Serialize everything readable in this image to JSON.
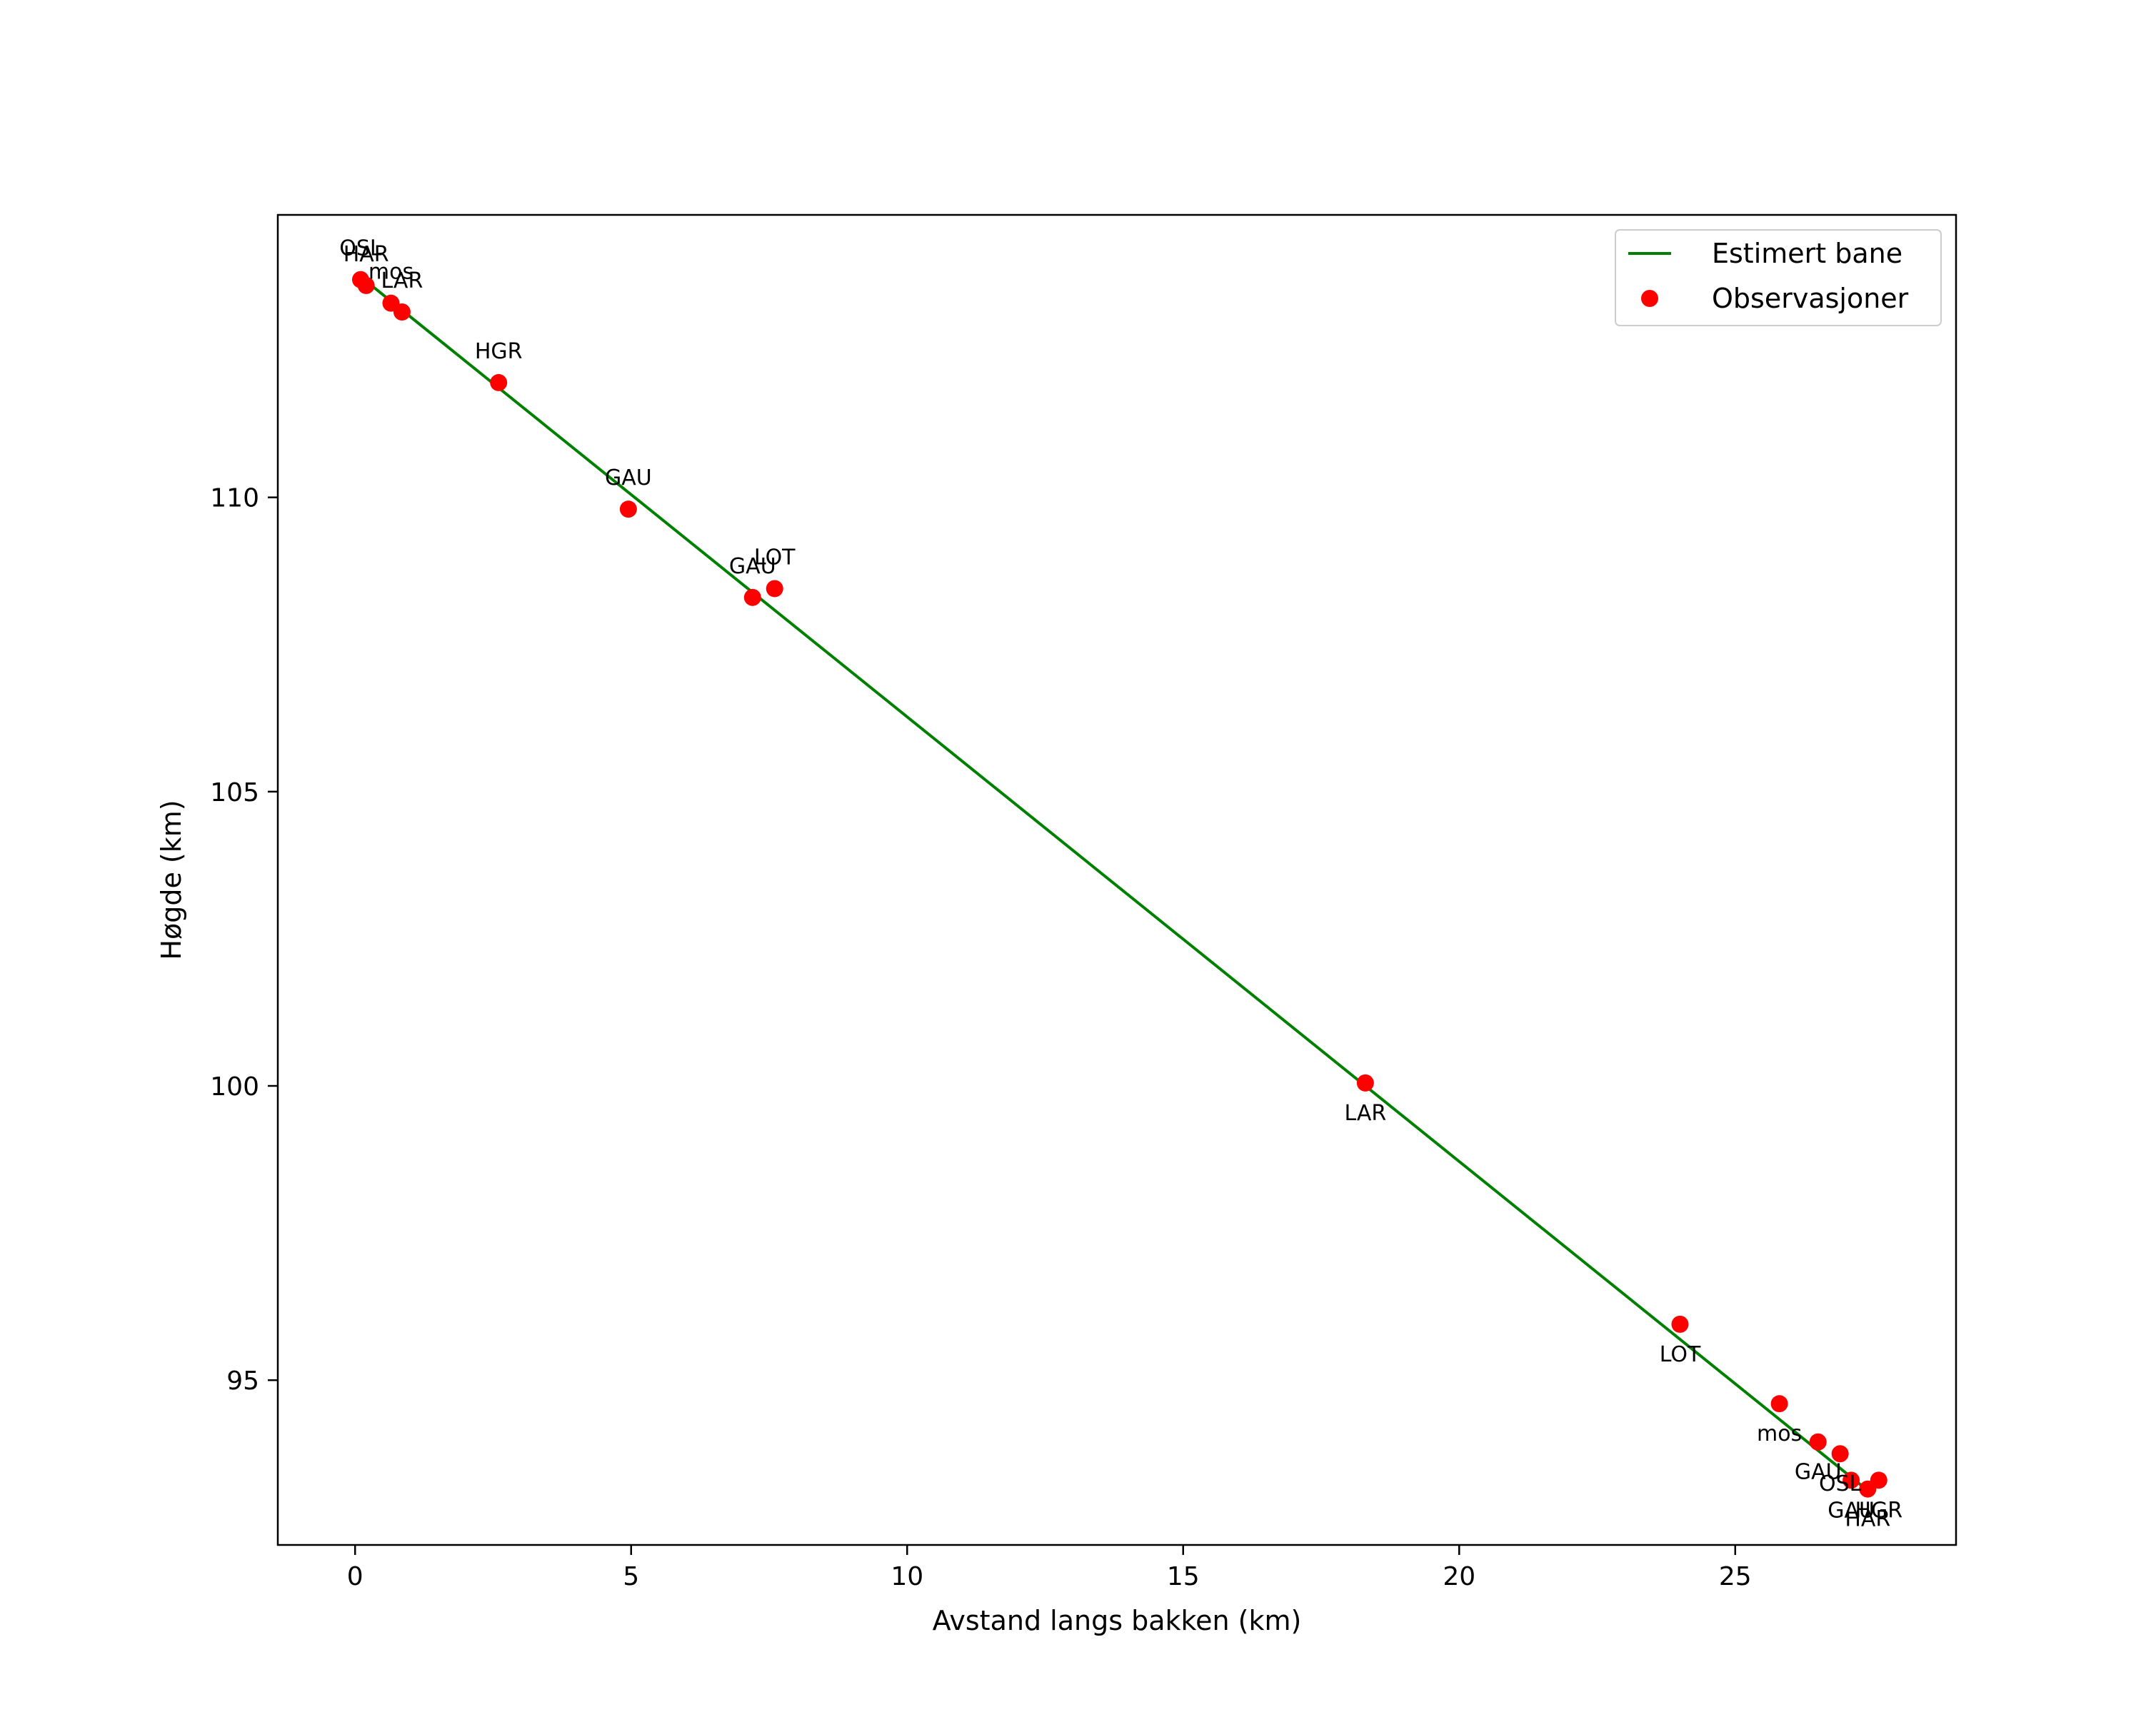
{
  "chart_data": {
    "type": "line",
    "title": "",
    "xlabel": "Avstand langs bakken (km)",
    "ylabel": "Høgde (km)",
    "xlim": [
      -1.4,
      29.0
    ],
    "ylim": [
      92.2,
      114.8
    ],
    "xticks": [
      0,
      5,
      10,
      15,
      20,
      25
    ],
    "yticks": [
      95,
      100,
      105,
      110
    ],
    "grid": false,
    "legend_position": "upper right",
    "colors": {
      "line": "#008000",
      "points": "#ff0000",
      "frame": "#000000"
    },
    "series": [
      {
        "name": "Estimert bane",
        "type": "line",
        "color": "#008000",
        "x": [
          0.1,
          27.5
        ],
        "y": [
          113.75,
          93.05
        ]
      },
      {
        "name": "Observasjoner",
        "type": "scatter",
        "color": "#ff0000",
        "points": [
          {
            "x": 0.1,
            "y": 113.7,
            "label": "OSL",
            "label_pos": "above"
          },
          {
            "x": 0.2,
            "y": 113.6,
            "label": "HAR",
            "label_pos": "above"
          },
          {
            "x": 0.65,
            "y": 113.3,
            "label": "mos",
            "label_pos": "above"
          },
          {
            "x": 0.85,
            "y": 113.15,
            "label": "LAR",
            "label_pos": "above"
          },
          {
            "x": 2.6,
            "y": 111.95,
            "label": "HGR",
            "label_pos": "above"
          },
          {
            "x": 4.95,
            "y": 109.8,
            "label": "GAU",
            "label_pos": "above"
          },
          {
            "x": 7.2,
            "y": 108.3,
            "label": "GAU",
            "label_pos": "above"
          },
          {
            "x": 7.6,
            "y": 108.45,
            "label": "LOT",
            "label_pos": "above"
          },
          {
            "x": 18.3,
            "y": 100.05,
            "label": "LAR",
            "label_pos": "below"
          },
          {
            "x": 24.0,
            "y": 95.95,
            "label": "LOT",
            "label_pos": "below"
          },
          {
            "x": 25.8,
            "y": 94.6,
            "label": "mos",
            "label_pos": "below"
          },
          {
            "x": 26.5,
            "y": 93.95,
            "label": "GAU",
            "label_pos": "below"
          },
          {
            "x": 26.9,
            "y": 93.75,
            "label": "OSL",
            "label_pos": "below"
          },
          {
            "x": 27.1,
            "y": 93.3,
            "label": "GAU",
            "label_pos": "below"
          },
          {
            "x": 27.4,
            "y": 93.15,
            "label": "HAR",
            "label_pos": "below"
          },
          {
            "x": 27.6,
            "y": 93.3,
            "label": "HGR",
            "label_pos": "below"
          }
        ]
      }
    ]
  }
}
